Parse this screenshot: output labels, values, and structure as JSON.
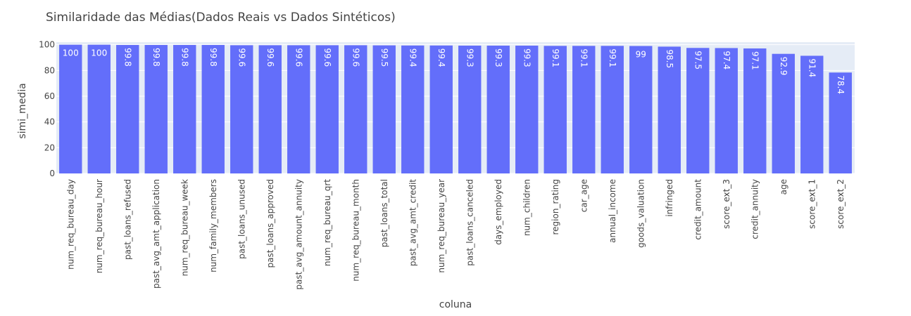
{
  "chart_data": {
    "type": "bar",
    "title": "Similaridade das Médias(Dados Reais vs Dados Sintéticos)",
    "xlabel": "coluna",
    "ylabel": "simi_media",
    "ylim": [
      0,
      102
    ],
    "yticks": [
      0,
      20,
      40,
      60,
      80,
      100
    ],
    "grid": true,
    "bar_color": "#636efa",
    "plot_background": "#e5ecf6",
    "categories": [
      "num_req_bureau_day",
      "num_req_bureau_hour",
      "past_loans_refused",
      "past_avg_amt_application",
      "num_req_bureau_week",
      "num_family_members",
      "past_loans_unused",
      "past_loans_approved",
      "past_avg_amount_annuity",
      "num_req_bureau_qrt",
      "num_req_bureau_month",
      "past_loans_total",
      "past_avg_amt_credit",
      "num_req_bureau_year",
      "past_loans_canceled",
      "days_employed",
      "num_children",
      "region_rating",
      "car_age",
      "annual_income",
      "goods_valuation",
      "infringed",
      "credit_amount",
      "score_ext_3",
      "credit_annuity",
      "age",
      "score_ext_1",
      "score_ext_2"
    ],
    "values": [
      100,
      100,
      99.8,
      99.8,
      99.8,
      99.8,
      99.6,
      99.6,
      99.6,
      99.6,
      99.6,
      99.5,
      99.4,
      99.4,
      99.3,
      99.3,
      99.3,
      99.1,
      99.1,
      99.1,
      99,
      98.5,
      97.5,
      97.4,
      97.1,
      92.9,
      91.4,
      78.4
    ],
    "labels": [
      "100",
      "100",
      "99.8",
      "99.8",
      "99.8",
      "99.8",
      "99.6",
      "99.6",
      "99.6",
      "99.6",
      "99.6",
      "99.5",
      "99.4",
      "99.4",
      "99.3",
      "99.3",
      "99.3",
      "99.1",
      "99.1",
      "99.1",
      "99",
      "98.5",
      "97.5",
      "97.4",
      "97.1",
      "92.9",
      "91.4",
      "78.4"
    ]
  }
}
